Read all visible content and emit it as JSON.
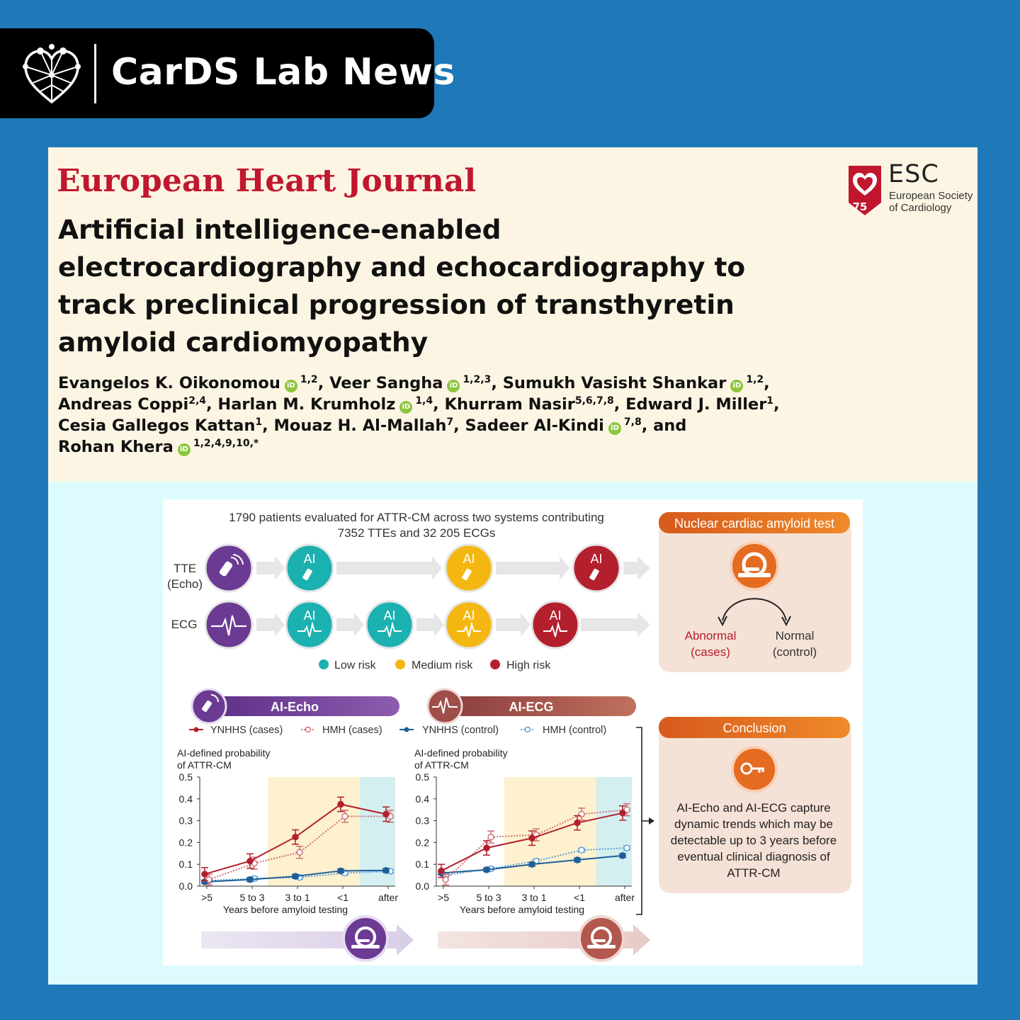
{
  "banner": {
    "title": "CarDS Lab News",
    "logo": "heart-network-logo"
  },
  "journal": {
    "name": "European Heart Journal",
    "title_color": "#c0172f"
  },
  "paper": {
    "title_lines": [
      "Artificial intelligence-enabled",
      "electrocardiography and echocardiography to",
      "track preclinical progression of transthyretin",
      "amyloid cardiomyopathy"
    ],
    "authors": {
      "a1": "Evangelos K. Oikonomou",
      "a1_aff": "1,2",
      "a2": "Veer Sangha",
      "a2_aff": "1,2,3",
      "a3": "Sumukh Vasisht Shankar",
      "a3_aff": "1,2",
      "a4": "Andreas Coppi",
      "a4_aff": "2,4",
      "a5": "Harlan M. Krumholz",
      "a5_aff": "1,4",
      "a6": "Khurram Nasir",
      "a6_aff": "5,6,7,8",
      "a7": "Edward J. Miller",
      "a7_aff": "1",
      "a8": "Cesia Gallegos Kattan",
      "a8_aff": "1",
      "a9": "Mouaz H. Al-Mallah",
      "a9_aff": "7",
      "a10": "Sadeer Al-Kindi",
      "a10_aff": "7,8",
      "conj": "and",
      "a11": "Rohan Khera",
      "a11_aff": "1,2,4,9,10,",
      "corr": "*",
      "orcid_glyph": "iD"
    }
  },
  "esc": {
    "name": "ESC",
    "line1": "European Society",
    "line2": "of Cardiology",
    "anniversary": "75"
  },
  "figure": {
    "header_line1": "1790 patients evaluated for ATTR-CM across two systems contributing",
    "header_line2": "7352 TTEs and 32 205 ECGs",
    "row_tte_1": "TTE",
    "row_tte_2": "(Echo)",
    "row_ecg": "ECG",
    "ai_label": "AI",
    "legend": {
      "low": "Low risk",
      "medium": "Medium risk",
      "high": "High risk"
    },
    "colors": {
      "low": "#1bb1b0",
      "medium": "#f4b711",
      "high": "#b41f2e",
      "purple": "#6b3a93",
      "ecg": "#9e4f4a",
      "orange": "#e46b20"
    },
    "nuclear": {
      "title": "Nuclear cardiac amyloid test",
      "abnormal_1": "Abnormal",
      "abnormal_2": "(cases)",
      "normal_1": "Normal",
      "normal_2": "(control)"
    },
    "conclusion": {
      "title": "Conclusion",
      "lines": [
        "AI-Echo and AI-ECG capture",
        "dynamic trends which may be",
        "detectable up to 3 years before",
        "eventual clinical diagnosis of",
        "ATTR-CM"
      ]
    },
    "series_legend": [
      "YNHHS (cases)",
      "HMH (cases)",
      "YNHHS (control)",
      "HMH (control)"
    ],
    "ylabel_1": "AI-defined probability",
    "ylabel_2": "of ATTR-CM",
    "xlabel": "Years before amyloid testing",
    "pills": {
      "echo": "AI-Echo",
      "ecg": "AI-ECG"
    }
  },
  "chart_data": [
    {
      "type": "line",
      "title": "AI-Echo",
      "xlabel": "Years before amyloid testing",
      "ylabel": "AI-defined probability of ATTR-CM",
      "categories": [
        ">5",
        "5 to 3",
        "3 to 1",
        "<1",
        "after"
      ],
      "ylim": [
        0,
        0.5
      ],
      "yticks": [
        "0.0",
        "0.1",
        "0.2",
        "0.3",
        "0.4",
        "0.5"
      ],
      "series": [
        {
          "name": "YNHHS (cases)",
          "values": [
            0.055,
            0.115,
            0.225,
            0.375,
            0.33
          ]
        },
        {
          "name": "HMH (cases)",
          "values": [
            0.03,
            0.105,
            0.155,
            0.32,
            0.32
          ]
        },
        {
          "name": "YNHHS (control)",
          "values": [
            0.02,
            0.03,
            0.045,
            0.07,
            0.072
          ]
        },
        {
          "name": "HMH (control)",
          "values": [
            0.025,
            0.035,
            0.04,
            0.06,
            0.068
          ]
        }
      ]
    },
    {
      "type": "line",
      "title": "AI-ECG",
      "xlabel": "Years before amyloid testing",
      "ylabel": "AI-defined probability of ATTR-CM",
      "categories": [
        ">5",
        "5 to 3",
        "3 to 1",
        "<1",
        "after"
      ],
      "ylim": [
        0,
        0.5
      ],
      "yticks": [
        "0.0",
        "0.1",
        "0.2",
        "0.3",
        "0.4",
        "0.5"
      ],
      "series": [
        {
          "name": "YNHHS (cases)",
          "values": [
            0.07,
            0.175,
            0.22,
            0.29,
            0.335
          ]
        },
        {
          "name": "HMH (cases)",
          "values": [
            0.03,
            0.225,
            0.235,
            0.33,
            0.35
          ]
        },
        {
          "name": "YNHHS (control)",
          "values": [
            0.06,
            0.075,
            0.1,
            0.12,
            0.14
          ]
        },
        {
          "name": "HMH (control)",
          "values": [
            0.05,
            0.08,
            0.115,
            0.165,
            0.175
          ]
        }
      ]
    }
  ]
}
